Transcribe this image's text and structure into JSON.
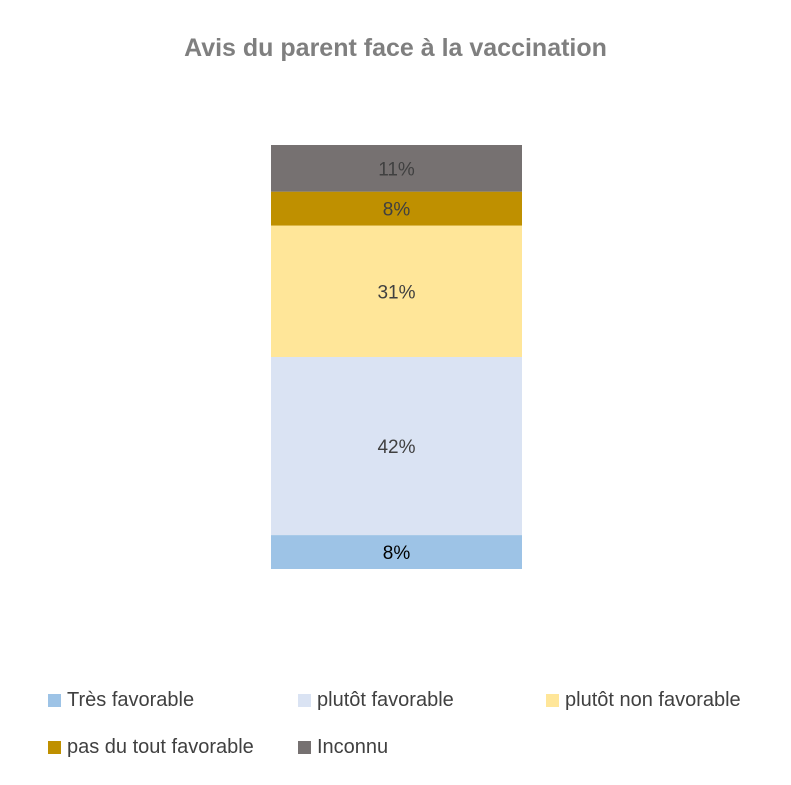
{
  "chart_data": {
    "type": "bar",
    "stacked": true,
    "title": "Avis du parent face à la vaccination",
    "categories": [
      ""
    ],
    "series": [
      {
        "name": "Très favorable",
        "values": [
          8
        ],
        "color": "#9dc3e6",
        "label": "8%"
      },
      {
        "name": "plutôt favorable",
        "values": [
          42
        ],
        "color": "#dae3f3",
        "label": "42%"
      },
      {
        "name": "plutôt non favorable",
        "values": [
          31
        ],
        "color": "#ffe699",
        "label": "31%"
      },
      {
        "name": "pas du tout favorable",
        "values": [
          8
        ],
        "color": "#bf9000",
        "label": "8%"
      },
      {
        "name": "Inconnu",
        "values": [
          11
        ],
        "color": "#767171",
        "label": "11%"
      }
    ],
    "ylim": [
      0,
      100
    ],
    "grid": false,
    "legend_position": "bottom"
  }
}
